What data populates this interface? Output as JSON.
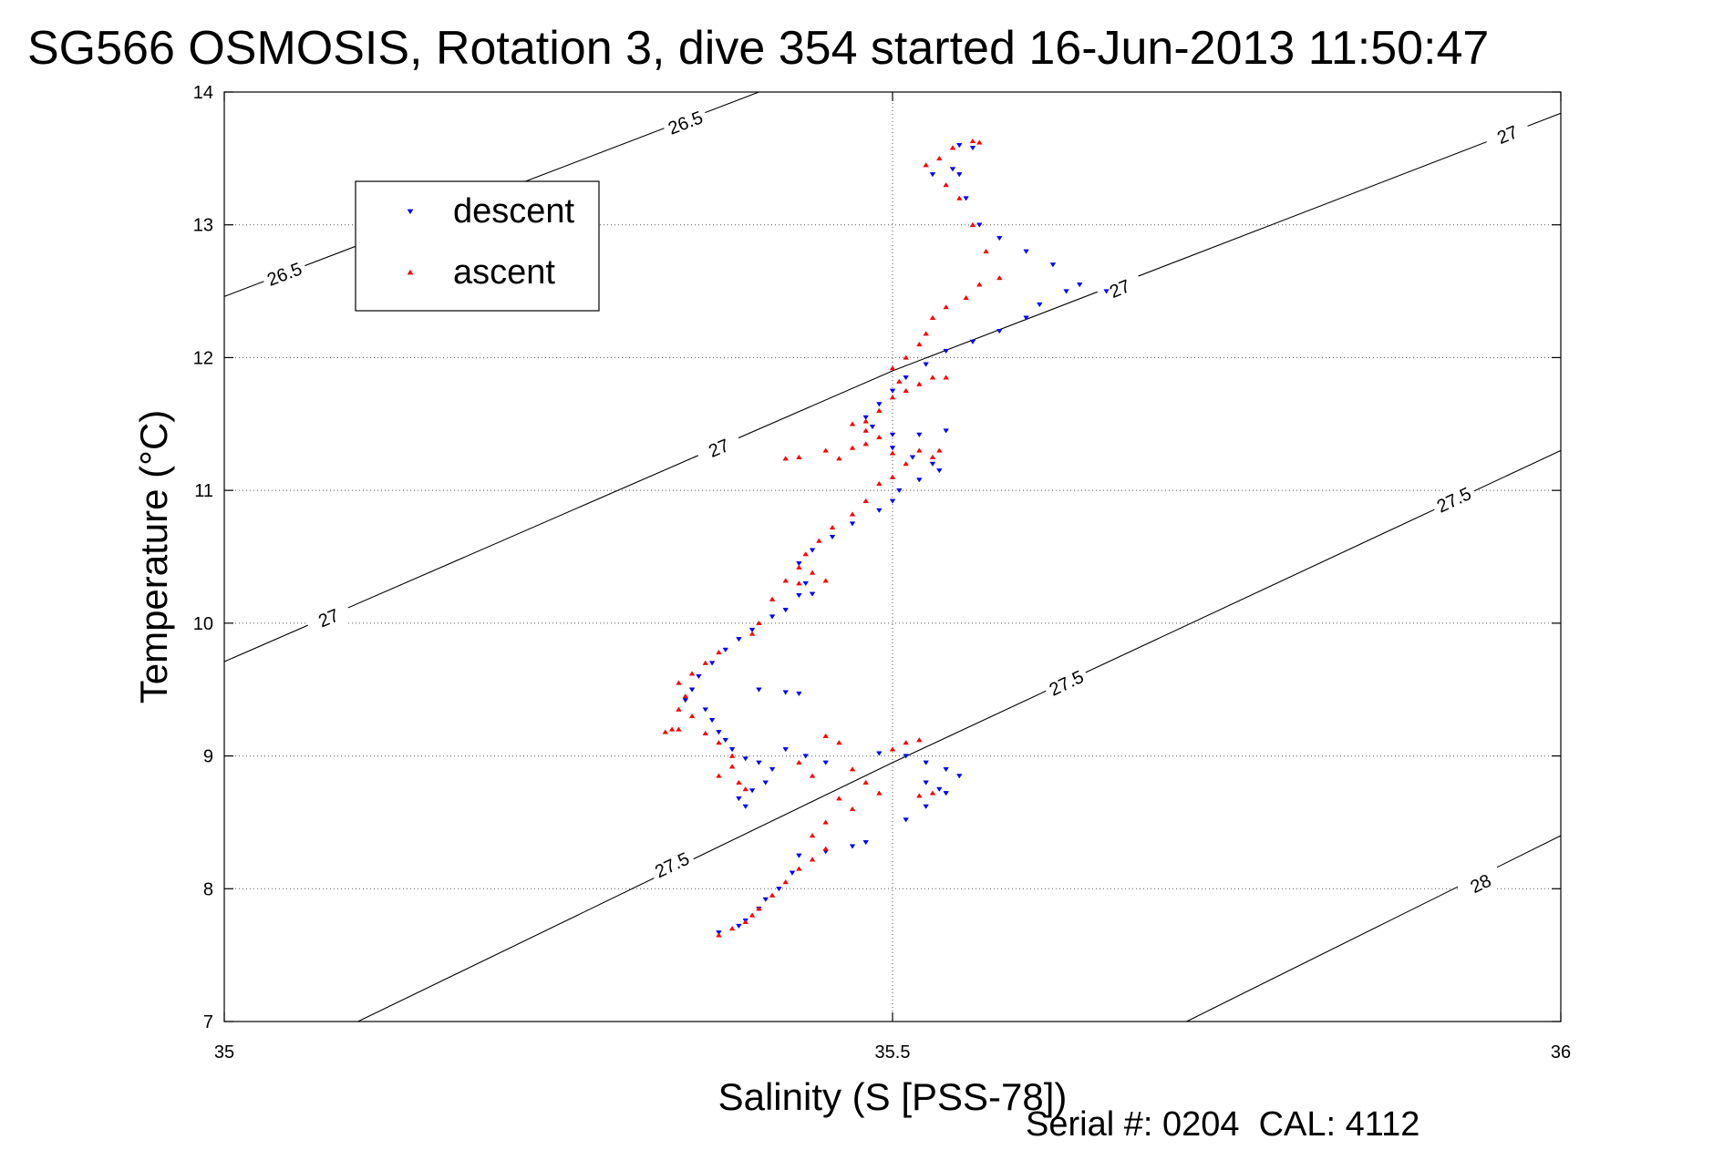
{
  "chart_data": {
    "type": "scatter",
    "title": "SG566 OSMOSIS, Rotation 3, dive 354 started 16-Jun-2013 11:50:47",
    "xlabel": "Salinity (S [PSS-78])",
    "ylabel": "Temperature (°C)",
    "xlim": [
      35,
      36
    ],
    "ylim": [
      7,
      14
    ],
    "xticks": [
      "35",
      "35.5",
      "36"
    ],
    "yticks": [
      "7",
      "8",
      "9",
      "10",
      "11",
      "12",
      "13",
      "14"
    ],
    "grid": true,
    "legend_position": "top-left",
    "footer": "Serial #: 0204  CAL: 4112",
    "colors": {
      "descent": "#0000ff",
      "ascent": "#ff0000",
      "contour": "#000000"
    },
    "contours": [
      {
        "label": "26.5",
        "points": [
          [
            35,
            12.46
          ],
          [
            35.4,
            14.0
          ]
        ],
        "label_positions": [
          [
            35.045,
            12.63
          ],
          [
            35.345,
            13.77
          ]
        ]
      },
      {
        "label": "27",
        "points": [
          [
            35,
            9.71
          ],
          [
            35.5,
            11.9
          ],
          [
            36,
            13.84
          ]
        ],
        "label_positions": [
          [
            35.078,
            10.04
          ],
          [
            35.37,
            11.32
          ],
          [
            35.67,
            12.52
          ],
          [
            35.96,
            13.68
          ]
        ]
      },
      {
        "label": "27.5",
        "points": [
          [
            35.1,
            7.0
          ],
          [
            35.5,
            8.95
          ],
          [
            36,
            11.3
          ]
        ],
        "label_positions": [
          [
            35.335,
            8.18
          ],
          [
            35.63,
            9.55
          ],
          [
            35.92,
            10.93
          ]
        ]
      },
      {
        "label": "28",
        "points": [
          [
            35.72,
            7.0
          ],
          [
            36,
            8.4
          ]
        ],
        "label_positions": [
          [
            35.94,
            8.04
          ]
        ]
      }
    ],
    "series": [
      {
        "name": "descent",
        "marker": "triangle-down",
        "points": [
          [
            35.55,
            13.6
          ],
          [
            35.56,
            13.58
          ],
          [
            35.545,
            13.42
          ],
          [
            35.53,
            13.38
          ],
          [
            35.55,
            13.38
          ],
          [
            35.555,
            13.2
          ],
          [
            35.565,
            13.0
          ],
          [
            35.58,
            12.9
          ],
          [
            35.6,
            12.8
          ],
          [
            35.62,
            12.7
          ],
          [
            35.64,
            12.55
          ],
          [
            35.66,
            12.5
          ],
          [
            35.63,
            12.5
          ],
          [
            35.61,
            12.4
          ],
          [
            35.6,
            12.3
          ],
          [
            35.58,
            12.2
          ],
          [
            35.56,
            12.12
          ],
          [
            35.54,
            12.05
          ],
          [
            35.525,
            11.95
          ],
          [
            35.51,
            11.85
          ],
          [
            35.5,
            11.75
          ],
          [
            35.49,
            11.65
          ],
          [
            35.48,
            11.55
          ],
          [
            35.485,
            11.48
          ],
          [
            35.5,
            11.42
          ],
          [
            35.52,
            11.42
          ],
          [
            35.54,
            11.45
          ],
          [
            35.5,
            11.32
          ],
          [
            35.515,
            11.25
          ],
          [
            35.53,
            11.2
          ],
          [
            35.535,
            11.15
          ],
          [
            35.52,
            11.08
          ],
          [
            35.505,
            11.0
          ],
          [
            35.5,
            10.92
          ],
          [
            35.49,
            10.85
          ],
          [
            35.47,
            10.75
          ],
          [
            35.455,
            10.65
          ],
          [
            35.44,
            10.55
          ],
          [
            35.43,
            10.45
          ],
          [
            35.435,
            10.3
          ],
          [
            35.44,
            10.22
          ],
          [
            35.43,
            10.21
          ],
          [
            35.42,
            10.1
          ],
          [
            35.41,
            10.05
          ],
          [
            35.395,
            9.95
          ],
          [
            35.385,
            9.88
          ],
          [
            35.375,
            9.8
          ],
          [
            35.365,
            9.7
          ],
          [
            35.355,
            9.6
          ],
          [
            35.35,
            9.5
          ],
          [
            35.345,
            9.42
          ],
          [
            35.36,
            9.35
          ],
          [
            35.365,
            9.27
          ],
          [
            35.37,
            9.18
          ],
          [
            35.375,
            9.12
          ],
          [
            35.38,
            9.05
          ],
          [
            35.39,
            8.98
          ],
          [
            35.4,
            8.95
          ],
          [
            35.41,
            8.9
          ],
          [
            35.405,
            8.8
          ],
          [
            35.395,
            8.74
          ],
          [
            35.385,
            8.68
          ],
          [
            35.39,
            8.62
          ],
          [
            35.4,
            9.5
          ],
          [
            35.42,
            9.48
          ],
          [
            35.43,
            9.47
          ],
          [
            35.42,
            9.05
          ],
          [
            35.435,
            9.0
          ],
          [
            35.45,
            8.95
          ],
          [
            35.49,
            9.02
          ],
          [
            35.51,
            9.0
          ],
          [
            35.525,
            8.95
          ],
          [
            35.54,
            8.9
          ],
          [
            35.55,
            8.85
          ],
          [
            35.525,
            8.8
          ],
          [
            35.535,
            8.75
          ],
          [
            35.54,
            8.72
          ],
          [
            35.525,
            8.62
          ],
          [
            35.51,
            8.52
          ],
          [
            35.48,
            8.35
          ],
          [
            35.47,
            8.32
          ],
          [
            35.45,
            8.28
          ],
          [
            35.43,
            8.25
          ],
          [
            35.425,
            8.12
          ],
          [
            35.415,
            8.0
          ],
          [
            35.405,
            7.92
          ],
          [
            35.4,
            7.85
          ],
          [
            35.39,
            7.76
          ],
          [
            35.385,
            7.72
          ],
          [
            35.37,
            7.67
          ]
        ]
      },
      {
        "name": "ascent",
        "marker": "triangle-up",
        "points": [
          [
            35.56,
            13.63
          ],
          [
            35.565,
            13.62
          ],
          [
            35.545,
            13.58
          ],
          [
            35.535,
            13.5
          ],
          [
            35.525,
            13.45
          ],
          [
            35.54,
            13.3
          ],
          [
            35.55,
            13.2
          ],
          [
            35.56,
            13.0
          ],
          [
            35.57,
            12.8
          ],
          [
            35.58,
            12.6
          ],
          [
            35.565,
            12.55
          ],
          [
            35.555,
            12.45
          ],
          [
            35.54,
            12.38
          ],
          [
            35.53,
            12.3
          ],
          [
            35.525,
            12.18
          ],
          [
            35.52,
            12.1
          ],
          [
            35.51,
            12.0
          ],
          [
            35.5,
            11.92
          ],
          [
            35.505,
            11.82
          ],
          [
            35.51,
            11.75
          ],
          [
            35.52,
            11.8
          ],
          [
            35.53,
            11.85
          ],
          [
            35.54,
            11.85
          ],
          [
            35.5,
            11.7
          ],
          [
            35.49,
            11.6
          ],
          [
            35.48,
            11.52
          ],
          [
            35.47,
            11.5
          ],
          [
            35.48,
            11.45
          ],
          [
            35.49,
            11.4
          ],
          [
            35.48,
            11.35
          ],
          [
            35.47,
            11.32
          ],
          [
            35.45,
            11.3
          ],
          [
            35.43,
            11.25
          ],
          [
            35.42,
            11.24
          ],
          [
            35.46,
            11.24
          ],
          [
            35.5,
            11.28
          ],
          [
            35.52,
            11.3
          ],
          [
            35.535,
            11.3
          ],
          [
            35.53,
            11.25
          ],
          [
            35.51,
            11.2
          ],
          [
            35.5,
            11.1
          ],
          [
            35.49,
            11.05
          ],
          [
            35.48,
            10.92
          ],
          [
            35.47,
            10.82
          ],
          [
            35.455,
            10.72
          ],
          [
            35.445,
            10.62
          ],
          [
            35.435,
            10.52
          ],
          [
            35.43,
            10.42
          ],
          [
            35.44,
            10.38
          ],
          [
            35.45,
            10.32
          ],
          [
            35.43,
            10.3
          ],
          [
            35.42,
            10.32
          ],
          [
            35.41,
            10.18
          ],
          [
            35.4,
            10.0
          ],
          [
            35.395,
            9.92
          ],
          [
            35.37,
            9.78
          ],
          [
            35.36,
            9.7
          ],
          [
            35.35,
            9.62
          ],
          [
            35.34,
            9.55
          ],
          [
            35.345,
            9.45
          ],
          [
            35.34,
            9.35
          ],
          [
            35.35,
            9.3
          ],
          [
            35.335,
            9.2
          ],
          [
            35.33,
            9.18
          ],
          [
            35.34,
            9.2
          ],
          [
            35.36,
            9.17
          ],
          [
            35.37,
            9.1
          ],
          [
            35.38,
            9.0
          ],
          [
            35.38,
            8.92
          ],
          [
            35.37,
            8.85
          ],
          [
            35.385,
            8.8
          ],
          [
            35.39,
            8.75
          ],
          [
            35.43,
            8.95
          ],
          [
            35.44,
            8.85
          ],
          [
            35.45,
            9.15
          ],
          [
            35.46,
            9.1
          ],
          [
            35.47,
            8.9
          ],
          [
            35.48,
            8.8
          ],
          [
            35.49,
            8.72
          ],
          [
            35.46,
            8.68
          ],
          [
            35.47,
            8.6
          ],
          [
            35.45,
            8.5
          ],
          [
            35.44,
            8.4
          ],
          [
            35.5,
            9.05
          ],
          [
            35.51,
            9.1
          ],
          [
            35.52,
            9.12
          ],
          [
            35.53,
            8.72
          ],
          [
            35.52,
            8.7
          ],
          [
            35.45,
            8.3
          ],
          [
            35.44,
            8.22
          ],
          [
            35.43,
            8.15
          ],
          [
            35.42,
            8.05
          ],
          [
            35.41,
            7.95
          ],
          [
            35.4,
            7.85
          ],
          [
            35.395,
            7.8
          ],
          [
            35.39,
            7.75
          ],
          [
            35.38,
            7.7
          ],
          [
            35.37,
            7.65
          ]
        ]
      }
    ]
  }
}
